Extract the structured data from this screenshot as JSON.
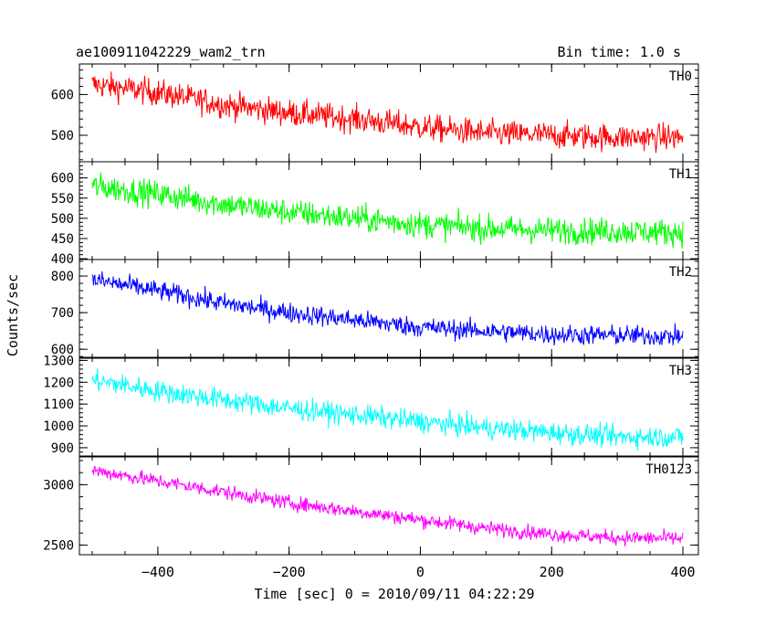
{
  "header": {
    "title": "ae100911042229_wam2_trn",
    "bin_time": "Bin time: 1.0 s"
  },
  "axes": {
    "ylabel": "Counts/sec",
    "xlabel": "Time [sec] 0 = 2010/09/11 04:22:29"
  },
  "chart_data": {
    "type": "line",
    "title": "ae100911042229_wam2_trn",
    "xlabel": "Time [sec] 0 = 2010/09/11 04:22:29",
    "ylabel": "Counts/sec",
    "xlim": [
      -500,
      400
    ],
    "x_ticks": [
      -400,
      -200,
      0,
      200,
      400
    ],
    "x_step_sec": 1.0,
    "grid": false,
    "panels": [
      {
        "name": "TH0",
        "color": "#ff0000",
        "ylim": [
          435,
          675
        ],
        "y_ticks": [
          500,
          600
        ],
        "trend_x": [
          -500,
          -400,
          -300,
          -200,
          -100,
          0,
          100,
          200,
          300,
          400
        ],
        "trend_y": [
          625,
          605,
          575,
          555,
          540,
          520,
          505,
          500,
          495,
          495
        ],
        "noise_amplitude": 30
      },
      {
        "name": "TH1",
        "color": "#00ff00",
        "ylim": [
          398,
          640
        ],
        "y_ticks": [
          400,
          450,
          500,
          550,
          600
        ],
        "trend_x": [
          -500,
          -400,
          -300,
          -200,
          -100,
          0,
          100,
          200,
          300,
          400
        ],
        "trend_y": [
          580,
          560,
          535,
          515,
          500,
          485,
          475,
          470,
          468,
          465
        ],
        "noise_amplitude": 30
      },
      {
        "name": "TH2",
        "color": "#0000ff",
        "ylim": [
          578,
          845
        ],
        "y_ticks": [
          600,
          700,
          800
        ],
        "trend_x": [
          -500,
          -400,
          -300,
          -200,
          -100,
          0,
          100,
          200,
          300,
          400
        ],
        "trend_y": [
          790,
          760,
          725,
          700,
          680,
          660,
          650,
          640,
          638,
          635
        ],
        "noise_amplitude": 25
      },
      {
        "name": "TH3",
        "color": "#00ffff",
        "ylim": [
          862,
          1310
        ],
        "y_ticks": [
          900,
          1000,
          1100,
          1200,
          1300
        ],
        "trend_x": [
          -500,
          -400,
          -300,
          -200,
          -100,
          0,
          100,
          200,
          300,
          400
        ],
        "trend_y": [
          1210,
          1160,
          1120,
          1080,
          1050,
          1020,
          990,
          970,
          950,
          950
        ],
        "noise_amplitude": 45
      },
      {
        "name": "TH0123",
        "color": "#ff00ff",
        "ylim": [
          2420,
          3230
        ],
        "y_ticks": [
          2500,
          3000
        ],
        "trend_x": [
          -500,
          -400,
          -300,
          -200,
          -100,
          0,
          100,
          200,
          300,
          400
        ],
        "trend_y": [
          3120,
          3030,
          2940,
          2850,
          2780,
          2710,
          2640,
          2590,
          2560,
          2555
        ],
        "noise_amplitude": 55
      }
    ]
  }
}
